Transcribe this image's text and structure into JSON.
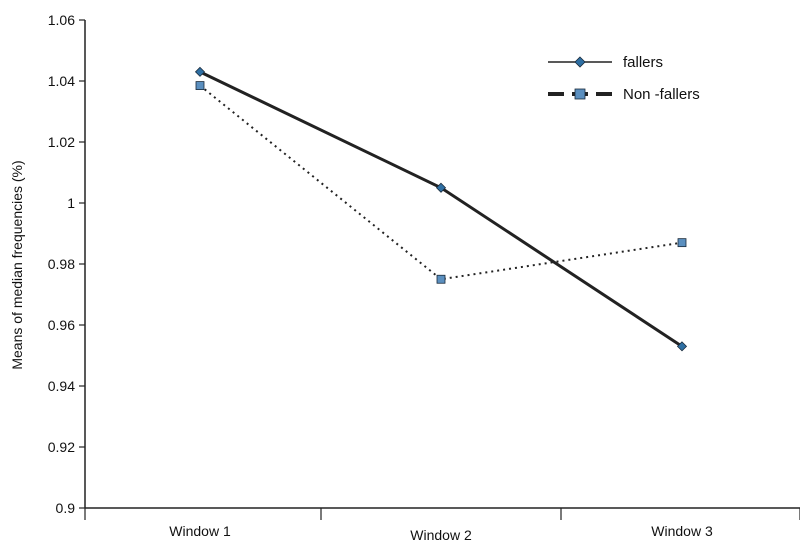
{
  "chart_data": {
    "type": "line",
    "categories": [
      "Window 1",
      "Window 2",
      "Window 3"
    ],
    "series": [
      {
        "name": "fallers",
        "values": [
          1.043,
          1.005,
          0.953
        ],
        "color": "#222222",
        "line_style": "solid",
        "marker": "diamond",
        "marker_color": "#2e6fa3"
      },
      {
        "name": "Non -fallers",
        "values": [
          1.0385,
          0.975,
          0.987
        ],
        "color": "#222222",
        "line_style": "dotted",
        "marker": "square",
        "marker_color": "#5b8fbf"
      }
    ],
    "title": "",
    "xlabel": "",
    "ylabel": "Means  of median frequencies  (%)",
    "ylim": [
      0.9,
      1.06
    ],
    "yticks": [
      "0.9",
      "0.92",
      "0.94",
      "0.96",
      "0.98",
      "1",
      "1.02",
      "1.04",
      "1.06"
    ],
    "grid": false,
    "legend_position": "top-right"
  }
}
